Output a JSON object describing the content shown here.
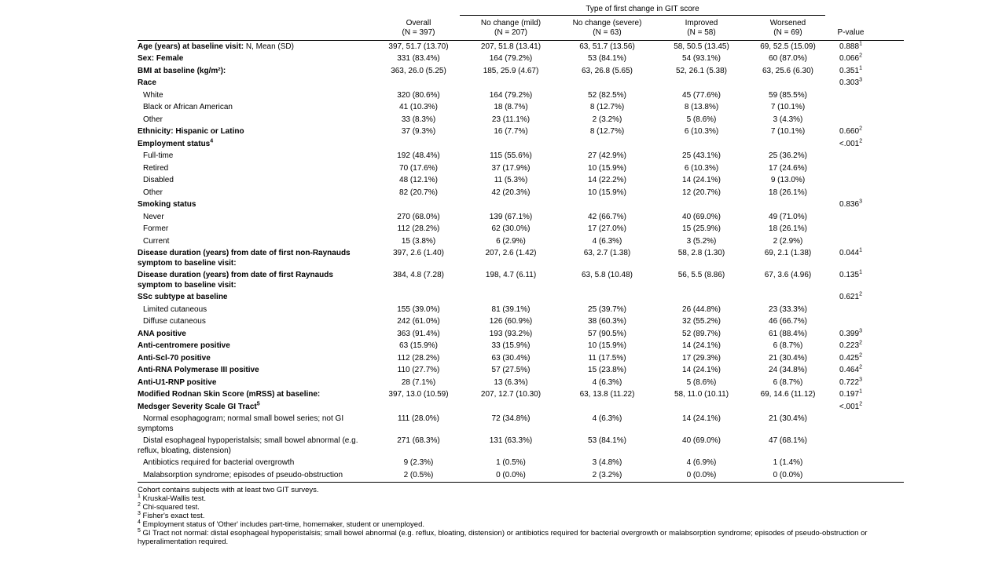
{
  "table": {
    "spanner": "Type of first change in GIT score",
    "columns": [
      {
        "label": "Overall",
        "n": "(N = 397)"
      },
      {
        "label": "No change (mild)",
        "n": "(N = 207)"
      },
      {
        "label": "No change (severe)",
        "n": "(N = 63)"
      },
      {
        "label": "Improved",
        "n": "(N = 58)"
      },
      {
        "label": "Worsened",
        "n": "(N = 69)"
      },
      {
        "label": "P-value"
      }
    ],
    "rows": [
      {
        "label": "Age (years) at baseline visit:",
        "suffix": " N, Mean (SD)",
        "bold": true,
        "cells": [
          "397, 51.7 (13.70)",
          "207, 51.8 (13.41)",
          "63, 51.7 (13.56)",
          "58, 50.5 (13.45)",
          "69, 52.5 (15.09)"
        ],
        "p": "0.888",
        "p_sup": "1"
      },
      {
        "label": "Sex: Female",
        "bold": true,
        "cells": [
          "331 (83.4%)",
          "164 (79.2%)",
          "53 (84.1%)",
          "54 (93.1%)",
          "60 (87.0%)"
        ],
        "p": "0.066",
        "p_sup": "2"
      },
      {
        "label": "BMI at baseline (kg/m²):",
        "bold": true,
        "cells": [
          "363, 26.0 (5.25)",
          "185, 25.9 (4.67)",
          "63, 26.8 (5.65)",
          "52, 26.1 (5.38)",
          "63, 25.6 (6.30)"
        ],
        "p": "0.351",
        "p_sup": "1"
      },
      {
        "label": "Race",
        "bold": true,
        "cells": [
          "",
          "",
          "",
          "",
          ""
        ],
        "p": "0.303",
        "p_sup": "3"
      },
      {
        "label": "White",
        "indent": true,
        "cells": [
          "320 (80.6%)",
          "164 (79.2%)",
          "52 (82.5%)",
          "45 (77.6%)",
          "59 (85.5%)"
        ]
      },
      {
        "label": "Black or African American",
        "indent": true,
        "cells": [
          "41 (10.3%)",
          "18 (8.7%)",
          "8 (12.7%)",
          "8 (13.8%)",
          "7 (10.1%)"
        ]
      },
      {
        "label": "Other",
        "indent": true,
        "cells": [
          "33 (8.3%)",
          "23 (11.1%)",
          "2 (3.2%)",
          "5 (8.6%)",
          "3 (4.3%)"
        ]
      },
      {
        "label": "Ethnicity: Hispanic or Latino",
        "bold": true,
        "cells": [
          "37 (9.3%)",
          "16 (7.7%)",
          "8 (12.7%)",
          "6 (10.3%)",
          "7 (10.1%)"
        ],
        "p": "0.660",
        "p_sup": "2"
      },
      {
        "label": "Employment status",
        "label_sup": "4",
        "bold": true,
        "cells": [
          "",
          "",
          "",
          "",
          ""
        ],
        "p": "<.001",
        "p_sup": "2"
      },
      {
        "label": "Full-time",
        "indent": true,
        "cells": [
          "192 (48.4%)",
          "115 (55.6%)",
          "27 (42.9%)",
          "25 (43.1%)",
          "25 (36.2%)"
        ]
      },
      {
        "label": "Retired",
        "indent": true,
        "cells": [
          "70 (17.6%)",
          "37 (17.9%)",
          "10 (15.9%)",
          "6 (10.3%)",
          "17 (24.6%)"
        ]
      },
      {
        "label": "Disabled",
        "indent": true,
        "cells": [
          "48 (12.1%)",
          "11 (5.3%)",
          "14 (22.2%)",
          "14 (24.1%)",
          "9 (13.0%)"
        ]
      },
      {
        "label": "Other",
        "indent": true,
        "cells": [
          "82 (20.7%)",
          "42 (20.3%)",
          "10 (15.9%)",
          "12 (20.7%)",
          "18 (26.1%)"
        ]
      },
      {
        "label": "Smoking status",
        "bold": true,
        "cells": [
          "",
          "",
          "",
          "",
          ""
        ],
        "p": "0.836",
        "p_sup": "3"
      },
      {
        "label": "Never",
        "indent": true,
        "cells": [
          "270 (68.0%)",
          "139 (67.1%)",
          "42 (66.7%)",
          "40 (69.0%)",
          "49 (71.0%)"
        ]
      },
      {
        "label": "Former",
        "indent": true,
        "cells": [
          "112 (28.2%)",
          "62 (30.0%)",
          "17 (27.0%)",
          "15 (25.9%)",
          "18 (26.1%)"
        ]
      },
      {
        "label": "Current",
        "indent": true,
        "cells": [
          "15 (3.8%)",
          "6 (2.9%)",
          "4 (6.3%)",
          "3 (5.2%)",
          "2 (2.9%)"
        ]
      },
      {
        "label": "Disease duration (years) from date of first non-Raynauds",
        "label2": "symptom to baseline visit:",
        "bold": true,
        "cells": [
          "397, 2.6 (1.40)",
          "207, 2.6 (1.42)",
          "63, 2.7 (1.38)",
          "58, 2.8 (1.30)",
          "69, 2.1 (1.38)"
        ],
        "p": "0.044",
        "p_sup": "1"
      },
      {
        "label": "Disease duration (years) from date of first Raynauds",
        "label2": "symptom to baseline visit:",
        "bold": true,
        "cells": [
          "384, 4.8 (7.28)",
          "198, 4.7 (6.11)",
          "63, 5.8 (10.48)",
          "56, 5.5 (8.86)",
          "67, 3.6 (4.96)"
        ],
        "p": "0.135",
        "p_sup": "1"
      },
      {
        "label": "SSc subtype at baseline",
        "bold": true,
        "cells": [
          "",
          "",
          "",
          "",
          ""
        ],
        "p": "0.621",
        "p_sup": "2"
      },
      {
        "label": "Limited cutaneous",
        "indent": true,
        "cells": [
          "155 (39.0%)",
          "81 (39.1%)",
          "25 (39.7%)",
          "26 (44.8%)",
          "23 (33.3%)"
        ]
      },
      {
        "label": "Diffuse cutaneous",
        "indent": true,
        "cells": [
          "242 (61.0%)",
          "126 (60.9%)",
          "38 (60.3%)",
          "32 (55.2%)",
          "46 (66.7%)"
        ]
      },
      {
        "label": "ANA positive",
        "bold": true,
        "cells": [
          "363 (91.4%)",
          "193 (93.2%)",
          "57 (90.5%)",
          "52 (89.7%)",
          "61 (88.4%)"
        ],
        "p": "0.399",
        "p_sup": "3"
      },
      {
        "label": "Anti-centromere positive",
        "bold": true,
        "cells": [
          "63 (15.9%)",
          "33 (15.9%)",
          "10 (15.9%)",
          "14 (24.1%)",
          "6 (8.7%)"
        ],
        "p": "0.223",
        "p_sup": "2"
      },
      {
        "label": "Anti-Scl-70 positive",
        "bold": true,
        "cells": [
          "112 (28.2%)",
          "63 (30.4%)",
          "11 (17.5%)",
          "17 (29.3%)",
          "21 (30.4%)"
        ],
        "p": "0.425",
        "p_sup": "2"
      },
      {
        "label": "Anti-RNA Polymerase III positive",
        "bold": true,
        "cells": [
          "110 (27.7%)",
          "57 (27.5%)",
          "15 (23.8%)",
          "14 (24.1%)",
          "24 (34.8%)"
        ],
        "p": "0.464",
        "p_sup": "2"
      },
      {
        "label": "Anti-U1-RNP positive",
        "bold": true,
        "cells": [
          "28 (7.1%)",
          "13 (6.3%)",
          "4 (6.3%)",
          "5 (8.6%)",
          "6 (8.7%)"
        ],
        "p": "0.722",
        "p_sup": "3"
      },
      {
        "label": "Modified Rodnan Skin Score (mRSS) at baseline:",
        "bold": true,
        "cells": [
          "397, 13.0 (10.59)",
          "207, 12.7 (10.30)",
          "63, 13.8 (11.22)",
          "58, 11.0 (10.11)",
          "69, 14.6 (11.12)"
        ],
        "p": "0.197",
        "p_sup": "1"
      },
      {
        "label": "Medsger Severity Scale GI Tract",
        "label_sup": "5",
        "bold": true,
        "cells": [
          "",
          "",
          "",
          "",
          ""
        ],
        "p": "<.001",
        "p_sup": "2"
      },
      {
        "label": "Normal esophagogram; normal small bowel series; not GI",
        "label2": "symptoms",
        "indent": true,
        "cells": [
          "111 (28.0%)",
          "72 (34.8%)",
          "4 (6.3%)",
          "14 (24.1%)",
          "21 (30.4%)"
        ]
      },
      {
        "label": "Distal esophageal hypoperistalsis; small bowel abnormal (e.g.",
        "label2": "reflux, bloating, distension)",
        "indent": true,
        "cells": [
          "271 (68.3%)",
          "131 (63.3%)",
          "53 (84.1%)",
          "40 (69.0%)",
          "47 (68.1%)"
        ]
      },
      {
        "label": "Antibiotics required for bacterial overgrowth",
        "indent": true,
        "cells": [
          "9 (2.3%)",
          "1 (0.5%)",
          "3 (4.8%)",
          "4 (6.9%)",
          "1 (1.4%)"
        ]
      },
      {
        "label": "Malabsorption syndrome; episodes of pseudo-obstruction",
        "indent": true,
        "cells": [
          "2 (0.5%)",
          "0 (0.0%)",
          "2 (3.2%)",
          "0 (0.0%)",
          "0 (0.0%)"
        ]
      }
    ]
  },
  "footnotes": [
    {
      "marker": "",
      "text": "Cohort contains subjects with at least two GIT surveys."
    },
    {
      "marker": "1",
      "text": "Kruskal-Wallis test."
    },
    {
      "marker": "2",
      "text": "Chi-squared test."
    },
    {
      "marker": "3",
      "text": "Fisher's exact test."
    },
    {
      "marker": "4",
      "text": "Employment status of 'Other' includes part-time, homemaker, student or unemployed."
    },
    {
      "marker": "5",
      "text": "GI Tract not normal: distal esophageal hypoperistalsis; small bowel abnormal (e.g. reflux, bloating, distension) or antibiotics required for bacterial overgrowth or malabsorption syndrome; episodes of pseudo-obstruction or hyperalimentation required."
    }
  ]
}
